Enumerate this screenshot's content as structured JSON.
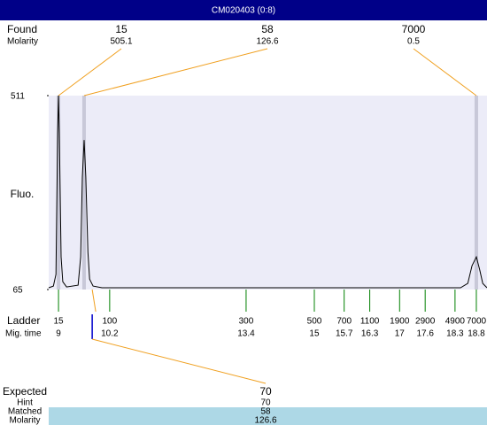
{
  "title": "CM020403 (0:8)",
  "chart_data": {
    "type": "line",
    "y_label": "Fluo.",
    "ylim": [
      65,
      511
    ],
    "yticks": [
      65,
      511
    ],
    "xlim": [
      8.77,
      19.05
    ],
    "series": [
      {
        "color": "#000000",
        "x": [
          8.77,
          8.88,
          8.94,
          8.98,
          9.0,
          9.02,
          9.06,
          9.1,
          9.19,
          9.46,
          9.52,
          9.56,
          9.6,
          9.64,
          9.69,
          9.73,
          9.81,
          10.02,
          18.43,
          18.6,
          18.7,
          18.8,
          18.88,
          18.95,
          19.05
        ],
        "values": [
          69,
          73,
          100,
          425,
          511,
          425,
          140,
          83,
          71,
          75,
          140,
          324,
          409,
          324,
          151,
          89,
          73,
          69,
          69,
          79,
          120,
          140,
          110,
          79,
          69
        ]
      }
    ],
    "found": {
      "label": "Found",
      "molarity_label": "Molarity",
      "peaks": [
        {
          "size": 15,
          "molarity": 505.1,
          "time": 9.0
        },
        {
          "size": 58,
          "molarity": 126.6,
          "time": 9.6
        },
        {
          "size": 7000,
          "molarity": 0.5,
          "time": 18.8
        }
      ]
    },
    "ladder": {
      "label": "Ladder",
      "time_label": "Mig. time",
      "sizes": [
        15,
        100,
        300,
        500,
        700,
        1100,
        1900,
        2900,
        4900,
        7000
      ],
      "times": [
        9,
        10.2,
        13.4,
        15,
        15.7,
        16.3,
        17,
        17.6,
        18.3,
        18.8
      ]
    },
    "expected": {
      "label": "Expected",
      "hint_label": "Hint",
      "matched_label": "Matched",
      "molarity_label": "Molarity",
      "size": 70,
      "hint": 70,
      "matched": 58,
      "molarity": 126.6,
      "time": 9.79
    }
  }
}
